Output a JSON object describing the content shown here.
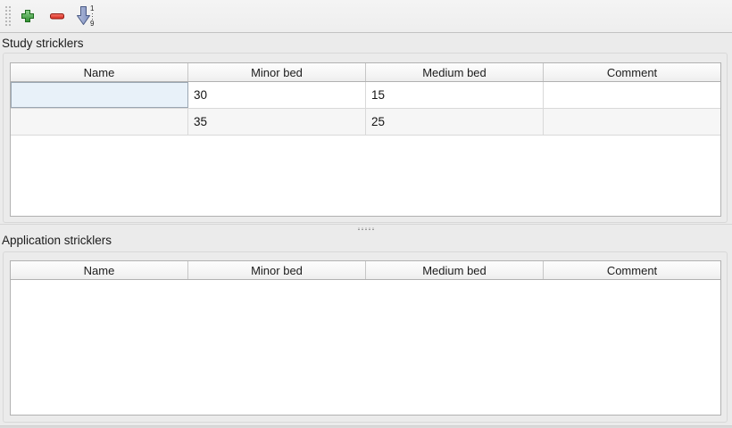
{
  "toolbar": {
    "add_button": {
      "icon": "plus-icon"
    },
    "remove_button": {
      "icon": "minus-icon"
    },
    "sort_button": {
      "icon": "sort-numeric-icon",
      "digit_top": "1",
      "digit_bottom": "9"
    }
  },
  "colors": {
    "add_green": "#44a044",
    "add_green_dark": "#1e6b1e",
    "remove_red": "#e63a2c",
    "remove_red_dark": "#8f1a12",
    "sort_arrow_fill": "#98a6cd",
    "sort_arrow_stroke": "#4a5a85",
    "selection_blue": "#e8f1f9",
    "panel_gray": "#ebebeb"
  },
  "sections": [
    {
      "label": "Study stricklers",
      "columns": [
        "Name",
        "Minor bed",
        "Medium bed",
        "Comment"
      ],
      "rows": [
        [
          {
            "value": "",
            "editing": true
          },
          {
            "value": "30"
          },
          {
            "value": "15"
          },
          {
            "value": ""
          }
        ],
        [
          {
            "value": ""
          },
          {
            "value": "35"
          },
          {
            "value": "25"
          },
          {
            "value": ""
          }
        ]
      ]
    },
    {
      "label": "Application stricklers",
      "columns": [
        "Name",
        "Minor bed",
        "Medium bed",
        "Comment"
      ],
      "rows": []
    }
  ]
}
